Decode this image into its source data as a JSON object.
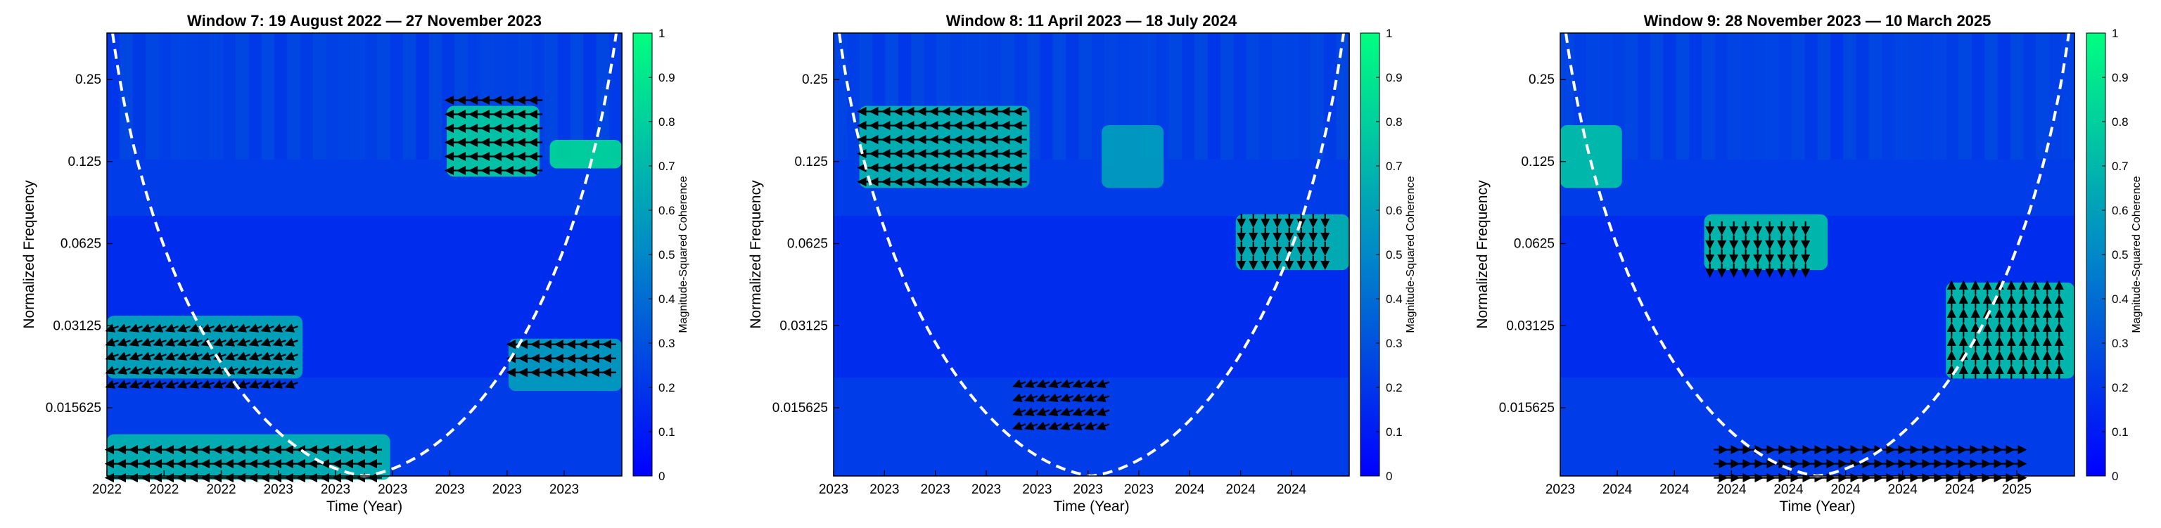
{
  "chart_data": [
    {
      "type": "heatmap",
      "title": "Window 7: 19 August 2022 — 27 November 2023",
      "xlabel": "Time (Year)",
      "ylabel": "Normalized Frequency",
      "x_tick_labels": [
        "2022",
        "2022",
        "2022",
        "2023",
        "2023",
        "2023",
        "2023",
        "2023",
        "2023"
      ],
      "y_tick_labels": [
        "0.25",
        "0.125",
        "0.0625",
        "0.03125",
        "0.015625"
      ],
      "y_scale": "log2",
      "colorbar": {
        "label": "Magnitude-Squared Coherence",
        "range": [
          0,
          1
        ],
        "ticks": [
          "0",
          "0.1",
          "0.2",
          "0.3",
          "0.4",
          "0.5",
          "0.6",
          "0.7",
          "0.8",
          "0.9",
          "1"
        ]
      },
      "high_coherence_regions": [
        {
          "time_frac": [
            0.0,
            0.38
          ],
          "freq_range": [
            0.02,
            0.034
          ],
          "coherence": 0.65
        },
        {
          "time_frac": [
            0.0,
            0.55
          ],
          "freq_range": [
            0.0085,
            0.0125
          ],
          "coherence": 0.7
        },
        {
          "time_frac": [
            0.66,
            0.84
          ],
          "freq_range": [
            0.11,
            0.2
          ],
          "coherence": 0.8
        },
        {
          "time_frac": [
            0.86,
            1.0
          ],
          "freq_range": [
            0.118,
            0.15
          ],
          "coherence": 0.85
        },
        {
          "time_frac": [
            0.78,
            1.0
          ],
          "freq_range": [
            0.018,
            0.028
          ],
          "coherence": 0.6
        }
      ],
      "phase_arrow_groups": [
        {
          "time_frac": [
            0.0,
            0.53
          ],
          "freq_range": [
            0.0085,
            0.0115
          ],
          "phase_deg": 180
        },
        {
          "time_frac": [
            0.0,
            0.38
          ],
          "freq_range": [
            0.018,
            0.032
          ],
          "phase_deg": 200
        },
        {
          "time_frac": [
            0.66,
            0.84
          ],
          "freq_range": [
            0.11,
            0.22
          ],
          "phase_deg": 180
        },
        {
          "time_frac": [
            0.78,
            1.0
          ],
          "freq_range": [
            0.02,
            0.028
          ],
          "phase_deg": 180
        }
      ]
    },
    {
      "type": "heatmap",
      "title": "Window 8: 11 April 2023 — 18 July 2024",
      "xlabel": "Time (Year)",
      "ylabel": "Normalized Frequency",
      "x_tick_labels": [
        "2023",
        "2023",
        "2023",
        "2023",
        "2023",
        "2023",
        "2023",
        "2024",
        "2024",
        "2024"
      ],
      "y_tick_labels": [
        "0.25",
        "0.125",
        "0.0625",
        "0.03125",
        "0.015625"
      ],
      "y_scale": "log2",
      "colorbar": {
        "label": "Magnitude-Squared Coherence",
        "range": [
          0,
          1
        ],
        "ticks": [
          "0",
          "0.1",
          "0.2",
          "0.3",
          "0.4",
          "0.5",
          "0.6",
          "0.7",
          "0.8",
          "0.9",
          "1"
        ]
      },
      "high_coherence_regions": [
        {
          "time_frac": [
            0.05,
            0.38
          ],
          "freq_range": [
            0.1,
            0.2
          ],
          "coherence": 0.7
        },
        {
          "time_frac": [
            0.52,
            0.64
          ],
          "freq_range": [
            0.1,
            0.17
          ],
          "coherence": 0.6
        },
        {
          "time_frac": [
            0.78,
            1.0
          ],
          "freq_range": [
            0.05,
            0.08
          ],
          "coherence": 0.7
        }
      ],
      "phase_arrow_groups": [
        {
          "time_frac": [
            0.05,
            0.38
          ],
          "freq_range": [
            0.1,
            0.2
          ],
          "phase_deg": 180
        },
        {
          "time_frac": [
            0.78,
            0.98
          ],
          "freq_range": [
            0.05,
            0.08
          ],
          "phase_deg": 270
        },
        {
          "time_frac": [
            0.35,
            0.55
          ],
          "freq_range": [
            0.013,
            0.02
          ],
          "phase_deg": 200
        }
      ]
    },
    {
      "type": "heatmap",
      "title": "Window 9: 28 November 2023 — 10 March 2025",
      "xlabel": "Time (Year)",
      "ylabel": "Normalized Frequency",
      "x_tick_labels": [
        "2023",
        "2024",
        "2024",
        "2024",
        "2024",
        "2024",
        "2024",
        "2024",
        "2025"
      ],
      "y_tick_labels": [
        "0.25",
        "0.125",
        "0.0625",
        "0.03125",
        "0.015625"
      ],
      "y_scale": "log2",
      "colorbar": {
        "label": "Magnitude-Squared Coherence",
        "range": [
          0,
          1
        ],
        "ticks": [
          "0",
          "0.1",
          "0.2",
          "0.3",
          "0.4",
          "0.5",
          "0.6",
          "0.7",
          "0.8",
          "0.9",
          "1"
        ]
      },
      "high_coherence_regions": [
        {
          "time_frac": [
            0.0,
            0.12
          ],
          "freq_range": [
            0.1,
            0.17
          ],
          "coherence": 0.75
        },
        {
          "time_frac": [
            0.28,
            0.52
          ],
          "freq_range": [
            0.05,
            0.08
          ],
          "coherence": 0.75
        },
        {
          "time_frac": [
            0.75,
            1.0
          ],
          "freq_range": [
            0.02,
            0.045
          ],
          "coherence": 0.75
        }
      ],
      "phase_arrow_groups": [
        {
          "time_frac": [
            0.75,
            0.98
          ],
          "freq_range": [
            0.02,
            0.045
          ],
          "phase_deg": 90
        },
        {
          "time_frac": [
            0.28,
            0.5
          ],
          "freq_range": [
            0.05,
            0.075
          ],
          "phase_deg": 270
        },
        {
          "time_frac": [
            0.3,
            0.9
          ],
          "freq_range": [
            0.0085,
            0.0115
          ],
          "phase_deg": 0
        }
      ]
    }
  ]
}
